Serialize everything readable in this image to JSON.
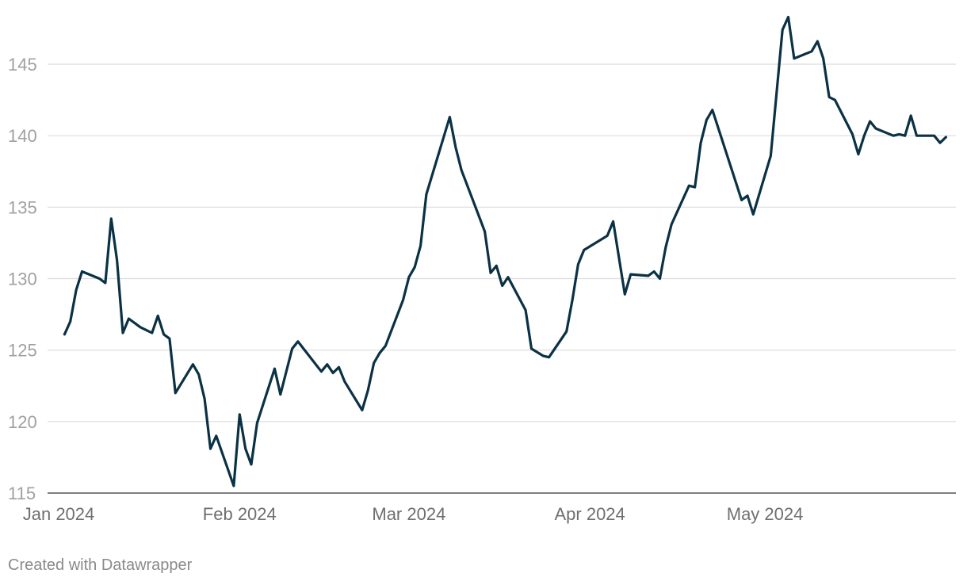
{
  "footer": {
    "credit": "Created with Datawrapper"
  },
  "colors": {
    "line": "#0b3145",
    "grid": "#dcdcdc",
    "ytick": "#a0a0a0",
    "xtick": "#6f6f6f"
  },
  "chart_data": {
    "type": "line",
    "title": "",
    "xlabel": "",
    "ylabel": "",
    "ylim": [
      115,
      148.5
    ],
    "xlim": [
      "2024-01-01",
      "2024-05-31"
    ],
    "grid": true,
    "y_ticks": [
      115,
      120,
      125,
      130,
      135,
      140,
      145
    ],
    "x_ticks": [
      {
        "date": "2024-01-01",
        "label": "Jan 2024"
      },
      {
        "date": "2024-02-01",
        "label": "Feb 2024"
      },
      {
        "date": "2024-03-01",
        "label": "Mar 2024"
      },
      {
        "date": "2024-04-01",
        "label": "Apr 2024"
      },
      {
        "date": "2024-05-01",
        "label": "May 2024"
      }
    ],
    "series": [
      {
        "points": [
          [
            "2024-01-02",
            126.1
          ],
          [
            "2024-01-03",
            127.0
          ],
          [
            "2024-01-04",
            129.2
          ],
          [
            "2024-01-05",
            130.5
          ],
          [
            "2024-01-08",
            130.0
          ],
          [
            "2024-01-09",
            129.7
          ],
          [
            "2024-01-10",
            134.2
          ],
          [
            "2024-01-11",
            131.3
          ],
          [
            "2024-01-12",
            126.2
          ],
          [
            "2024-01-13",
            127.2
          ],
          [
            "2024-01-15",
            126.6
          ],
          [
            "2024-01-17",
            126.2
          ],
          [
            "2024-01-18",
            127.4
          ],
          [
            "2024-01-19",
            126.1
          ],
          [
            "2024-01-20",
            125.8
          ],
          [
            "2024-01-21",
            122.0
          ],
          [
            "2024-01-24",
            124.0
          ],
          [
            "2024-01-25",
            123.3
          ],
          [
            "2024-01-26",
            121.6
          ],
          [
            "2024-01-27",
            118.1
          ],
          [
            "2024-01-28",
            119.0
          ],
          [
            "2024-01-31",
            115.5
          ],
          [
            "2024-02-01",
            120.5
          ],
          [
            "2024-02-02",
            118.1
          ],
          [
            "2024-02-03",
            117.0
          ],
          [
            "2024-02-04",
            119.9
          ],
          [
            "2024-02-07",
            123.7
          ],
          [
            "2024-02-08",
            121.9
          ],
          [
            "2024-02-10",
            125.1
          ],
          [
            "2024-02-11",
            125.6
          ],
          [
            "2024-02-15",
            123.5
          ],
          [
            "2024-02-16",
            124.0
          ],
          [
            "2024-02-17",
            123.4
          ],
          [
            "2024-02-18",
            123.8
          ],
          [
            "2024-02-19",
            122.8
          ],
          [
            "2024-02-22",
            120.8
          ],
          [
            "2024-02-23",
            122.2
          ],
          [
            "2024-02-24",
            124.1
          ],
          [
            "2024-02-25",
            124.8
          ],
          [
            "2024-02-26",
            125.3
          ],
          [
            "2024-02-29",
            128.5
          ],
          [
            "2024-03-01",
            130.1
          ],
          [
            "2024-03-02",
            130.8
          ],
          [
            "2024-03-03",
            132.3
          ],
          [
            "2024-03-04",
            135.9
          ],
          [
            "2024-03-08",
            141.3
          ],
          [
            "2024-03-09",
            139.2
          ],
          [
            "2024-03-10",
            137.6
          ],
          [
            "2024-03-14",
            133.3
          ],
          [
            "2024-03-15",
            130.4
          ],
          [
            "2024-03-16",
            130.9
          ],
          [
            "2024-03-17",
            129.5
          ],
          [
            "2024-03-18",
            130.1
          ],
          [
            "2024-03-21",
            127.8
          ],
          [
            "2024-03-22",
            125.1
          ],
          [
            "2024-03-24",
            124.6
          ],
          [
            "2024-03-25",
            124.5
          ],
          [
            "2024-03-28",
            126.3
          ],
          [
            "2024-03-29",
            128.5
          ],
          [
            "2024-03-30",
            131.0
          ],
          [
            "2024-03-31",
            132.0
          ],
          [
            "2024-04-04",
            133.0
          ],
          [
            "2024-04-05",
            134.0
          ],
          [
            "2024-04-07",
            128.9
          ],
          [
            "2024-04-08",
            130.3
          ],
          [
            "2024-04-11",
            130.2
          ],
          [
            "2024-04-12",
            130.5
          ],
          [
            "2024-04-13",
            130.0
          ],
          [
            "2024-04-14",
            132.2
          ],
          [
            "2024-04-15",
            133.8
          ],
          [
            "2024-04-18",
            136.5
          ],
          [
            "2024-04-19",
            136.4
          ],
          [
            "2024-04-20",
            139.5
          ],
          [
            "2024-04-21",
            141.1
          ],
          [
            "2024-04-22",
            141.8
          ],
          [
            "2024-04-27",
            135.5
          ],
          [
            "2024-04-28",
            135.8
          ],
          [
            "2024-04-29",
            134.5
          ],
          [
            "2024-05-02",
            138.6
          ],
          [
            "2024-05-04",
            147.4
          ],
          [
            "2024-05-05",
            148.3
          ],
          [
            "2024-05-06",
            145.4
          ],
          [
            "2024-05-09",
            145.9
          ],
          [
            "2024-05-10",
            146.6
          ],
          [
            "2024-05-11",
            145.4
          ],
          [
            "2024-05-12",
            142.7
          ],
          [
            "2024-05-13",
            142.5
          ],
          [
            "2024-05-16",
            140.1
          ],
          [
            "2024-05-17",
            138.7
          ],
          [
            "2024-05-18",
            140.0
          ],
          [
            "2024-05-19",
            141.0
          ],
          [
            "2024-05-20",
            140.5
          ],
          [
            "2024-05-23",
            140.0
          ],
          [
            "2024-05-24",
            140.1
          ],
          [
            "2024-05-25",
            140.0
          ],
          [
            "2024-05-26",
            141.4
          ],
          [
            "2024-05-27",
            140.0
          ],
          [
            "2024-05-30",
            140.0
          ],
          [
            "2024-05-31",
            139.5
          ],
          [
            "2024-06-01",
            139.9
          ]
        ]
      }
    ]
  }
}
